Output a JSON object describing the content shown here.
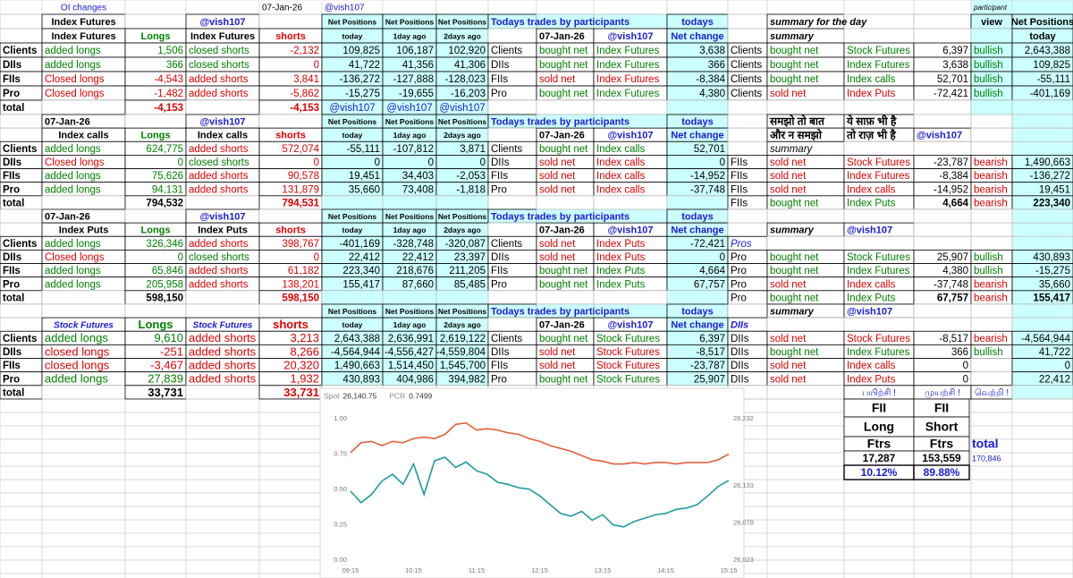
{
  "sheet": {
    "rows": [
      [
        null,
        "OI changes",
        null,
        null,
        "07-Jan-26",
        "@vish107",
        null,
        null,
        null,
        null,
        null,
        null,
        null,
        null,
        null,
        null,
        "participant"
      ],
      [
        null,
        "Index Futures",
        null,
        "@vish107",
        null,
        "Net Positions",
        "Net Positions",
        "Net Positions",
        "Todays trades by participants",
        null,
        null,
        "todays",
        null,
        "summary for the day",
        null,
        null,
        "view",
        "Net Positions"
      ],
      [
        null,
        "Index Futures",
        "Longs",
        "Index Futures",
        "shorts",
        "today",
        "1day ago",
        "2days ago",
        null,
        "07-Jan-26",
        "@vish107",
        "Net change",
        null,
        "summary",
        null,
        null,
        null,
        "today"
      ],
      [
        "Clients",
        "added longs",
        "1,506",
        "closed shorts",
        "-2,132",
        "109,825",
        "106,187",
        "102,920",
        "Clients",
        "bought net",
        "Index Futures",
        "3,638",
        "Clients",
        "bought net",
        "Stock Futures",
        "6,397",
        "bullish",
        "2,643,388"
      ],
      [
        "DIIs",
        "added longs",
        "366",
        "closed shorts",
        "0",
        "41,722",
        "41,356",
        "41,306",
        "DIIs",
        "bought net",
        "Index Futures",
        "366",
        "Clients",
        "bought net",
        "Index Futures",
        "3,638",
        "bullish",
        "109,825"
      ],
      [
        "FIIs",
        "Closed longs",
        "-4,543",
        "added shorts",
        "3,841",
        "-136,272",
        "-127,888",
        "-128,023",
        "FIIs",
        "sold net",
        "Index Futures",
        "-8,384",
        "Clients",
        "bought net",
        "Index calls",
        "52,701",
        "bullish",
        "-55,111"
      ],
      [
        "Pro",
        "Closed longs",
        "-1,482",
        "added shorts",
        "-5,862",
        "-15,275",
        "-19,655",
        "-16,203",
        "Pro",
        "bought net",
        "Index Futures",
        "4,380",
        "Clients",
        "sold net",
        "Index Puts",
        "-72,421",
        "bullish",
        "-401,169"
      ],
      [
        "total",
        null,
        "-4,153",
        null,
        "-4,153",
        "@vish107",
        "@vish107",
        "@vish107"
      ],
      [
        null,
        "07-Jan-26",
        null,
        "@vish107",
        null,
        "Net Positions",
        "Net Positions",
        "Net Positions",
        "Todays trades by participants",
        null,
        null,
        "todays",
        null,
        "समझो तो बात",
        "ये साफ़ भी है"
      ],
      [
        null,
        "Index calls",
        "Longs",
        "Index calls",
        "shorts",
        "today",
        "1day ago",
        "2days ago",
        null,
        "07-Jan-26",
        "@vish107",
        "Net change",
        null,
        "और न समझो",
        "तो राज़ भी है",
        "@vish107"
      ],
      [
        "Clients",
        "added longs",
        "624,775",
        "added shorts",
        "572,074",
        "-55,111",
        "-107,812",
        "3,871",
        "Clients",
        "bought net",
        "Index calls",
        "52,701",
        null,
        "summary"
      ],
      [
        "DIIs",
        "Closed longs",
        "0",
        "closed shorts",
        "0",
        "0",
        "0",
        "0",
        "DIIs",
        "sold net",
        "Index calls",
        "0",
        "FIIs",
        "sold net",
        "Stock Futures",
        "-23,787",
        "bearish",
        "1,490,663"
      ],
      [
        "FIIs",
        "added longs",
        "75,626",
        "added shorts",
        "90,578",
        "19,451",
        "34,403",
        "-2,053",
        "FIIs",
        "sold net",
        "Index calls",
        "-14,952",
        "FIIs",
        "sold net",
        "Index Futures",
        "-8,384",
        "bearish",
        "-136,272"
      ],
      [
        "Pro",
        "added longs",
        "94,131",
        "added shorts",
        "131,879",
        "35,660",
        "73,408",
        "-1,818",
        "Pro",
        "sold net",
        "Index calls",
        "-37,748",
        "FIIs",
        "sold net",
        "Index calls",
        "-14,952",
        "bearish",
        "19,451"
      ],
      [
        "total",
        null,
        "794,532",
        null,
        "794,531",
        null,
        null,
        null,
        null,
        null,
        null,
        null,
        "FIIs",
        "bought net",
        "Index Puts",
        "4,664",
        "bearish",
        "223,340"
      ],
      [
        null,
        "07-Jan-26",
        null,
        "@vish107",
        null,
        "Net Positions",
        "Net Positions",
        "Net Positions",
        "Todays trades by participants",
        null,
        null,
        "todays"
      ],
      [
        null,
        "Index Puts",
        "Longs",
        "Index Puts",
        "shorts",
        "today",
        "1day ago",
        "2days ago",
        null,
        "07-Jan-26",
        "@vish107",
        "Net change",
        null,
        "summary",
        "@vish107"
      ],
      [
        "Clients",
        "added longs",
        "326,346",
        "added shorts",
        "398,767",
        "-401,169",
        "-328,748",
        "-320,087",
        "Clients",
        "sold net",
        "Index Puts",
        "-72,421",
        "Pros"
      ],
      [
        "DIIs",
        "Closed longs",
        "0",
        "closed shorts",
        "0",
        "22,412",
        "22,412",
        "23,397",
        "DIIs",
        "sold net",
        "Index Puts",
        "0",
        "Pro",
        "bought net",
        "Stock Futures",
        "25,907",
        "bullish",
        "430,893"
      ],
      [
        "FIIs",
        "added longs",
        "65,846",
        "added shorts",
        "61,182",
        "223,340",
        "218,676",
        "211,205",
        "FIIs",
        "bought net",
        "Index Puts",
        "4,664",
        "Pro",
        "bought net",
        "Index Futures",
        "4,380",
        "bullish",
        "-15,275"
      ],
      [
        "Pro",
        "added longs",
        "205,958",
        "added shorts",
        "138,201",
        "155,417",
        "87,660",
        "85,485",
        "Pro",
        "bought net",
        "Index Puts",
        "67,757",
        "Pro",
        "sold net",
        "Index calls",
        "-37,748",
        "bearish",
        "35,660"
      ],
      [
        "total",
        null,
        "598,150",
        null,
        "598,150",
        null,
        null,
        null,
        null,
        null,
        null,
        null,
        "Pro",
        "bought net",
        "Index Puts",
        "67,757",
        "bearish",
        "155,417"
      ],
      [
        null,
        null,
        null,
        null,
        null,
        "Net Positions",
        "Net Positions",
        "Net Positions",
        "Todays trades by participants",
        null,
        null,
        "todays",
        null,
        "summary",
        "@vish107"
      ],
      [
        null,
        "Stock Futures",
        "Longs",
        "Stock Futures",
        "shorts",
        "today",
        "1day ago",
        "2days ago",
        null,
        "07-Jan-26",
        "@vish107",
        "Net change",
        "DIIs"
      ],
      [
        "Clients",
        "added longs",
        "9,610",
        "added shorts",
        "3,213",
        "2,643,388",
        "2,636,991",
        "2,619,122",
        "Clients",
        "bought net",
        "Stock Futures",
        "6,397",
        "DIIs",
        "sold net",
        "Stock Futures",
        "-8,517",
        "bearish",
        "-4,564,944"
      ],
      [
        "DIIs",
        "closed longs",
        "-251",
        "added shorts",
        "8,266",
        "-4,564,944",
        "-4,556,427",
        "-4,559,804",
        "DIIs",
        "sold net",
        "Stock Futures",
        "-8,517",
        "DIIs",
        "bought net",
        "Index Futures",
        "366",
        "bullish",
        "41,722"
      ],
      [
        "FIIs",
        "closed longs",
        "-3,467",
        "added shorts",
        "20,320",
        "1,490,663",
        "1,514,450",
        "1,545,700",
        "FIIs",
        "sold net",
        "Stock Futures",
        "-23,787",
        "DIIs",
        "sold net",
        "Index calls",
        "0",
        null,
        "0"
      ],
      [
        "Pro",
        "added longs",
        "27,839",
        "added shorts",
        "1,932",
        "430,893",
        "404,986",
        "394,982",
        "Pro",
        "bought net",
        "Stock Futures",
        "25,907",
        "DIIs",
        "sold net",
        "Index Puts",
        "0",
        null,
        "22,412"
      ],
      [
        "total",
        null,
        "33,731",
        null,
        "33,731",
        null,
        null,
        null,
        null,
        null,
        null,
        null,
        null,
        null,
        "பயிற்சி !",
        "முயற்சி !",
        "வெற்றி !"
      ]
    ]
  },
  "fii_box": {
    "rows": [
      [
        "FII",
        "FII"
      ],
      [
        "Long",
        "Short"
      ],
      [
        "Ftrs",
        "Ftrs",
        "total"
      ],
      [
        "17,287",
        "153,559",
        "170,846"
      ],
      [
        "10.12%",
        "89.88%"
      ]
    ]
  },
  "chart_data": {
    "type": "line",
    "x": [
      "09:15",
      "09:25",
      "09:35",
      "09:45",
      "09:55",
      "10:05",
      "10:15",
      "10:25",
      "10:35",
      "10:45",
      "10:55",
      "11:05",
      "11:15",
      "11:25",
      "11:35",
      "11:45",
      "11:55",
      "12:05",
      "12:15",
      "12:25",
      "12:35",
      "12:45",
      "12:55",
      "13:05",
      "13:15",
      "13:25",
      "13:35",
      "13:45",
      "13:55",
      "14:05",
      "14:15",
      "14:25",
      "14:35",
      "14:45",
      "14:55",
      "15:05",
      "15:15"
    ],
    "xticks": [
      "09:15",
      "10:15",
      "11:15",
      "12:15",
      "13:15",
      "14:15",
      "15:15"
    ],
    "ylim": [
      0,
      1
    ],
    "yticks": [
      {
        "value": 0,
        "label": "0.00"
      },
      {
        "value": 0.25,
        "label": "0.25"
      },
      {
        "value": 0.5,
        "label": "0.50"
      },
      {
        "value": 0.75,
        "label": "0.75"
      },
      {
        "value": 1,
        "label": "1.00"
      }
    ],
    "y2lim": [
      26023,
      26232
    ],
    "y2ticks": [
      {
        "value": 26023,
        "label": "26,023"
      },
      {
        "value": 26078,
        "label": "26,078"
      },
      {
        "value": 26133,
        "label": "26,133"
      },
      {
        "value": 26232,
        "label": "26,232"
      }
    ],
    "series": [
      {
        "name": "Spot",
        "current": "26,140.75",
        "color": "#1f9a9e",
        "axis": "y2",
        "values": [
          26125,
          26108,
          26120,
          26140,
          26150,
          26135,
          26165,
          26120,
          26170,
          26175,
          26160,
          26168,
          26155,
          26150,
          26138,
          26135,
          26130,
          26128,
          26118,
          26105,
          26092,
          26088,
          26095,
          26082,
          26090,
          26075,
          26072,
          26080,
          26085,
          26090,
          26092,
          26098,
          26100,
          26105,
          26118,
          26132,
          26140.75
        ]
      },
      {
        "name": "PCR",
        "current": "0.7499",
        "color": "#e2603a",
        "values": [
          0.76,
          0.83,
          0.84,
          0.81,
          0.84,
          0.83,
          0.86,
          0.87,
          0.86,
          0.89,
          0.96,
          0.97,
          0.92,
          0.93,
          0.92,
          0.9,
          0.89,
          0.86,
          0.84,
          0.81,
          0.79,
          0.77,
          0.74,
          0.71,
          0.7,
          0.68,
          0.68,
          0.69,
          0.68,
          0.69,
          0.69,
          0.68,
          0.69,
          0.69,
          0.69,
          0.71,
          0.7499
        ]
      }
    ]
  }
}
